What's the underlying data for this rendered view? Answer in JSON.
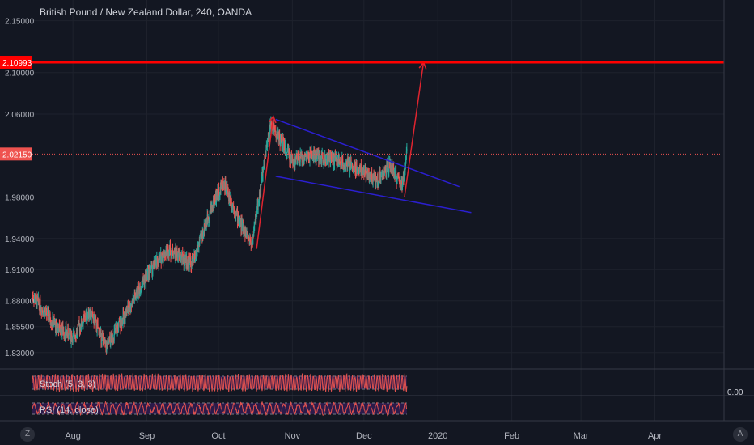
{
  "chart_data": {
    "type": "candlestick",
    "title": "British Pound / New Zealand Dollar, 240, OANDA",
    "x_axis": {
      "tick_labels": [
        "Aug",
        "Sep",
        "Oct",
        "Nov",
        "Dec",
        "2020",
        "Feb",
        "Mar",
        "Apr"
      ],
      "range": [
        "2019-07-15",
        "2020-04-30"
      ]
    },
    "y_axis": {
      "tick_labels": [
        "2.15000",
        "2.10000",
        "2.06000",
        "1.98000",
        "1.94000",
        "1.91000",
        "1.88000",
        "1.85500",
        "1.83000"
      ],
      "range": [
        1.815,
        2.17
      ],
      "price_label_current": "2.02150",
      "price_label_resistance": "2.10993"
    },
    "grid": true,
    "key_points": [
      {
        "date": "2019-07-15",
        "close": 1.885
      },
      {
        "date": "2019-07-25",
        "close": 1.855
      },
      {
        "date": "2019-08-01",
        "close": 1.845
      },
      {
        "date": "2019-08-08",
        "close": 1.87
      },
      {
        "date": "2019-08-15",
        "close": 1.835
      },
      {
        "date": "2019-08-25",
        "close": 1.875
      },
      {
        "date": "2019-09-01",
        "close": 1.905
      },
      {
        "date": "2019-09-10",
        "close": 1.93
      },
      {
        "date": "2019-09-20",
        "close": 1.915
      },
      {
        "date": "2019-09-28",
        "close": 1.97
      },
      {
        "date": "2019-10-03",
        "close": 1.995
      },
      {
        "date": "2019-10-10",
        "close": 1.955
      },
      {
        "date": "2019-10-15",
        "close": 1.935
      },
      {
        "date": "2019-10-20",
        "close": 2.01
      },
      {
        "date": "2019-10-23",
        "close": 2.05
      },
      {
        "date": "2019-11-01",
        "close": 2.015
      },
      {
        "date": "2019-11-10",
        "close": 2.02
      },
      {
        "date": "2019-11-20",
        "close": 2.015
      },
      {
        "date": "2019-12-01",
        "close": 2.005
      },
      {
        "date": "2019-12-06",
        "close": 1.995
      },
      {
        "date": "2019-12-12",
        "close": 2.01
      },
      {
        "date": "2019-12-17",
        "close": 1.99
      },
      {
        "date": "2019-12-19",
        "close": 2.0215
      }
    ],
    "resistance_level": 2.10993,
    "current_price": 2.0215,
    "channel_upper": [
      {
        "date": "2019-10-25",
        "value": 2.055
      },
      {
        "date": "2020-01-10",
        "value": 1.99
      }
    ],
    "channel_lower": [
      {
        "date": "2019-10-25",
        "value": 2.0
      },
      {
        "date": "2020-01-15",
        "value": 1.965
      }
    ],
    "arrows": [
      {
        "from": {
          "date": "2019-10-17",
          "value": 1.93
        },
        "to": {
          "date": "2019-10-24",
          "value": 2.058
        }
      },
      {
        "from": {
          "date": "2019-12-18",
          "value": 1.98
        },
        "to": {
          "date": "2019-12-26",
          "value": 2.11
        }
      }
    ],
    "indicators": [
      {
        "name": "Stoch (5, 3, 3)"
      },
      {
        "name": "RSI (14, close)"
      }
    ],
    "indicator_value": "0.00"
  },
  "colors": {
    "background": "#131722",
    "grid": "#1e222d",
    "up": "#26a69a",
    "down": "#ef5350",
    "resistance": "#ff0000",
    "channel": "#2b1fd0",
    "arrow": "#e0242f",
    "indicator_band": "#2b1b4a"
  },
  "corner_buttons": {
    "left": "Z",
    "right": "A"
  }
}
